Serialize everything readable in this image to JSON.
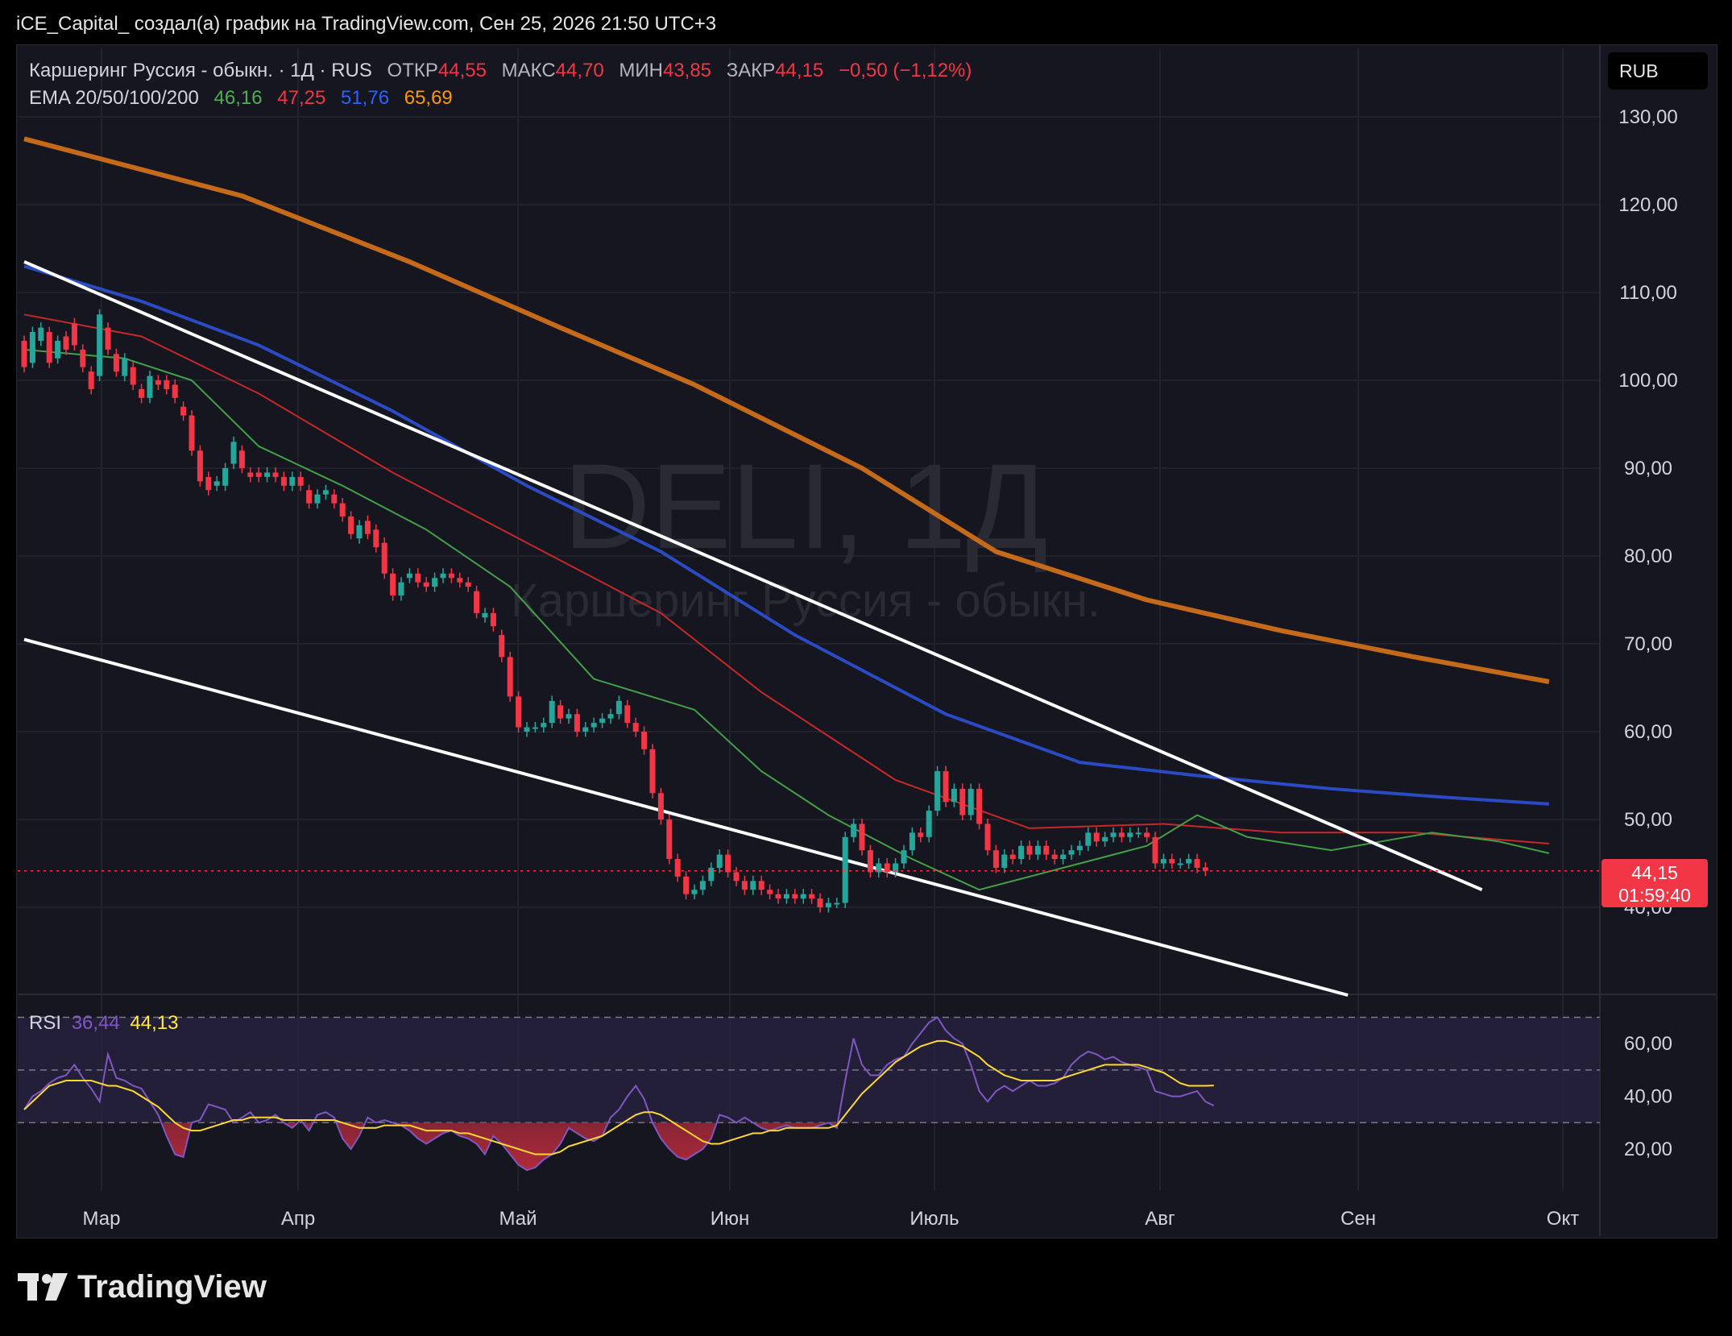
{
  "header": "iCE_Capital_ создал(а) график на TradingView.com, Сен 25, 2026 21:50 UTC+3",
  "legend": {
    "symbol": "Каршеринг Руссия - обыкн. · 1Д · RUS",
    "open_label": "ОТКР",
    "open": "44,55",
    "high_label": "МАКС",
    "high": "44,70",
    "low_label": "МИН",
    "low": "43,85",
    "close_label": "ЗАКР",
    "close": "44,15",
    "change": "−0,50 (−1,12%)",
    "ema_label": "EMA 20/50/100/200",
    "ema20": "46,16",
    "ema50": "47,25",
    "ema100": "51,76",
    "ema200": "65,69"
  },
  "currency_button": "RUB",
  "watermark": {
    "ticker": "DELI, 1Д",
    "name": "Каршеринг Руссия - обыкн."
  },
  "price_tag": {
    "price": "44,15",
    "countdown": "01:59:40"
  },
  "rsi_legend": {
    "label": "RSI",
    "value": "36,44",
    "ma": "44,13"
  },
  "brand": "TradingView",
  "colors": {
    "up": "#26a69a",
    "down": "#f23645",
    "ema20": "#43a047",
    "ema50": "#c62828",
    "ema100": "#2b4bc4",
    "ema200": "#c46a1a",
    "rsi": "#7e57c2",
    "rsi_ma": "#fdd835",
    "trendline": "#ffffff"
  },
  "chart_data": {
    "type": "candlestick",
    "x_ticks": [
      "Мар",
      "Апр",
      "Май",
      "Июн",
      "Июль",
      "Авг",
      "Сен",
      "Окт"
    ],
    "y_ticks": [
      "130,00",
      "120,00",
      "110,00",
      "100,00",
      "90,00",
      "80,00",
      "70,00",
      "60,00",
      "50,00",
      "40,00"
    ],
    "ylim": [
      30,
      134
    ],
    "rsi_ticks": [
      "60,00",
      "40,00",
      "20,00"
    ],
    "rsi_bands": [
      30,
      50,
      70
    ],
    "candles": [
      [
        104.5,
        101.5
      ],
      [
        102.0,
        105.5
      ],
      [
        104.5,
        106.0
      ],
      [
        105.5,
        102.0
      ],
      [
        102.5,
        104.5
      ],
      [
        105.0,
        103.5
      ],
      [
        106.5,
        104.0
      ],
      [
        103.5,
        101.5
      ],
      [
        101.0,
        99.0
      ],
      [
        100.5,
        107.5
      ],
      [
        106.0,
        103.5
      ],
      [
        103.0,
        101.0
      ],
      [
        100.5,
        102.5
      ],
      [
        101.5,
        99.5
      ],
      [
        99.0,
        98.0
      ],
      [
        98.0,
        100.5
      ],
      [
        100.0,
        99.5
      ],
      [
        100.0,
        99.0
      ],
      [
        99.5,
        98.0
      ],
      [
        97.0,
        96.0
      ],
      [
        96.0,
        92.0
      ],
      [
        92.0,
        88.5
      ],
      [
        89.0,
        87.5
      ],
      [
        88.0,
        88.5
      ],
      [
        88.0,
        90.0
      ],
      [
        90.5,
        93.0
      ],
      [
        92.0,
        90.0
      ],
      [
        89.5,
        89.0
      ],
      [
        89.5,
        89.0
      ],
      [
        89.0,
        89.5
      ],
      [
        89.5,
        89.0
      ],
      [
        89.0,
        88.0
      ],
      [
        88.0,
        89.0
      ],
      [
        89.0,
        88.0
      ],
      [
        87.5,
        86.0
      ],
      [
        86.0,
        87.0
      ],
      [
        87.0,
        87.5
      ],
      [
        87.0,
        86.0
      ],
      [
        86.0,
        84.5
      ],
      [
        84.5,
        82.5
      ],
      [
        82.0,
        83.5
      ],
      [
        84.0,
        82.5
      ],
      [
        83.0,
        81.0
      ],
      [
        81.5,
        78.0
      ],
      [
        78.0,
        75.5
      ],
      [
        75.5,
        77.0
      ],
      [
        77.5,
        78.0
      ],
      [
        78.0,
        77.0
      ],
      [
        77.0,
        76.5
      ],
      [
        76.5,
        77.5
      ],
      [
        77.5,
        78.0
      ],
      [
        78.0,
        77.5
      ],
      [
        77.5,
        77.0
      ],
      [
        77.0,
        76.5
      ],
      [
        76.0,
        73.5
      ],
      [
        73.0,
        73.5
      ],
      [
        73.5,
        72.0
      ],
      [
        71.0,
        68.5
      ],
      [
        68.5,
        64.0
      ],
      [
        64.0,
        60.5
      ],
      [
        60.0,
        60.5
      ],
      [
        60.5,
        60.5
      ],
      [
        60.5,
        61.0
      ],
      [
        61.0,
        63.5
      ],
      [
        63.0,
        61.5
      ],
      [
        61.5,
        62.0
      ],
      [
        62.0,
        60.0
      ],
      [
        60.0,
        60.5
      ],
      [
        60.5,
        61.0
      ],
      [
        61.0,
        61.5
      ],
      [
        61.5,
        62.0
      ],
      [
        62.0,
        63.5
      ],
      [
        63.0,
        61.0
      ],
      [
        61.0,
        60.0
      ],
      [
        60.0,
        58.0
      ],
      [
        58.0,
        53.0
      ],
      [
        53.0,
        50.0
      ],
      [
        50.0,
        45.5
      ],
      [
        45.5,
        43.5
      ],
      [
        43.5,
        41.5
      ],
      [
        41.5,
        42.0
      ],
      [
        42.0,
        43.0
      ],
      [
        43.0,
        44.5
      ],
      [
        44.5,
        46.0
      ],
      [
        46.0,
        44.0
      ],
      [
        44.0,
        43.0
      ],
      [
        43.0,
        42.0
      ],
      [
        42.0,
        43.0
      ],
      [
        43.0,
        42.0
      ],
      [
        42.0,
        41.5
      ],
      [
        41.5,
        41.0
      ],
      [
        41.0,
        41.5
      ],
      [
        41.5,
        41.0
      ],
      [
        41.0,
        41.5
      ],
      [
        41.5,
        41.0
      ],
      [
        41.0,
        40.0
      ],
      [
        40.0,
        40.5
      ],
      [
        40.5,
        40.5
      ],
      [
        40.5,
        48.0
      ],
      [
        48.0,
        49.5
      ],
      [
        49.5,
        46.5
      ],
      [
        46.5,
        44.0
      ],
      [
        44.0,
        45.0
      ],
      [
        45.0,
        44.0
      ],
      [
        44.0,
        45.0
      ],
      [
        45.0,
        46.5
      ],
      [
        46.5,
        48.5
      ],
      [
        48.5,
        48.0
      ],
      [
        48.0,
        51.0
      ],
      [
        51.0,
        55.5
      ],
      [
        55.5,
        52.0
      ],
      [
        52.0,
        53.5
      ],
      [
        53.5,
        50.5
      ],
      [
        50.5,
        53.5
      ],
      [
        53.5,
        49.5
      ],
      [
        49.5,
        46.5
      ],
      [
        46.5,
        44.5
      ],
      [
        44.5,
        46.0
      ],
      [
        46.0,
        45.5
      ],
      [
        45.5,
        47.0
      ],
      [
        47.0,
        46.0
      ],
      [
        46.0,
        47.0
      ],
      [
        47.0,
        46.0
      ],
      [
        46.0,
        45.5
      ],
      [
        45.5,
        46.0
      ],
      [
        46.0,
        46.5
      ],
      [
        46.5,
        47.0
      ],
      [
        47.0,
        48.5
      ],
      [
        48.5,
        47.5
      ],
      [
        47.5,
        48.0
      ],
      [
        48.0,
        48.5
      ],
      [
        48.5,
        48.0
      ],
      [
        48.0,
        48.5
      ],
      [
        48.5,
        48.5
      ],
      [
        48.5,
        48.0
      ],
      [
        48.0,
        45.0
      ],
      [
        45.0,
        45.5
      ],
      [
        45.5,
        45.0
      ],
      [
        45.0,
        45.0
      ],
      [
        45.0,
        45.5
      ],
      [
        45.5,
        44.5
      ],
      [
        44.55,
        44.15
      ]
    ],
    "ema20": [
      [
        0,
        103.5
      ],
      [
        12,
        102.5
      ],
      [
        20,
        100.0
      ],
      [
        28,
        92.5
      ],
      [
        38,
        88.0
      ],
      [
        48,
        83.0
      ],
      [
        58,
        76.5
      ],
      [
        68,
        66.0
      ],
      [
        80,
        62.5
      ],
      [
        88,
        55.5
      ],
      [
        96,
        50.5
      ],
      [
        106,
        45.5
      ],
      [
        114,
        42.0
      ],
      [
        124,
        44.5
      ],
      [
        134,
        47.0
      ],
      [
        140,
        50.5
      ],
      [
        146,
        48.0
      ],
      [
        156,
        46.5
      ],
      [
        168,
        48.5
      ],
      [
        176,
        47.5
      ],
      [
        182,
        46.16
      ]
    ],
    "ema50": [
      [
        0,
        107.5
      ],
      [
        14,
        105.0
      ],
      [
        28,
        98.5
      ],
      [
        44,
        89.5
      ],
      [
        60,
        81.5
      ],
      [
        76,
        73.5
      ],
      [
        88,
        64.5
      ],
      [
        104,
        54.5
      ],
      [
        120,
        49.0
      ],
      [
        136,
        49.5
      ],
      [
        150,
        48.5
      ],
      [
        166,
        48.5
      ],
      [
        182,
        47.25
      ]
    ],
    "ema100": [
      [
        0,
        113.0
      ],
      [
        14,
        109.0
      ],
      [
        28,
        104.0
      ],
      [
        44,
        96.5
      ],
      [
        60,
        88.0
      ],
      [
        76,
        80.5
      ],
      [
        92,
        71.0
      ],
      [
        110,
        62.0
      ],
      [
        126,
        56.5
      ],
      [
        140,
        55.0
      ],
      [
        156,
        53.5
      ],
      [
        170,
        52.5
      ],
      [
        182,
        51.76
      ]
    ],
    "ema200": [
      [
        0,
        127.5
      ],
      [
        26,
        121.0
      ],
      [
        46,
        113.5
      ],
      [
        64,
        106.0
      ],
      [
        80,
        99.5
      ],
      [
        100,
        90.0
      ],
      [
        116,
        80.5
      ],
      [
        134,
        75.0
      ],
      [
        150,
        71.5
      ],
      [
        166,
        68.5
      ],
      [
        182,
        65.69
      ]
    ],
    "trendlines": [
      [
        [
          0,
          113.5
        ],
        [
          174,
          42.0
        ]
      ],
      [
        [
          0,
          70.5
        ],
        [
          158,
          30.0
        ]
      ]
    ],
    "rsi": [
      35,
      40,
      42,
      45,
      47,
      48,
      52,
      47,
      43,
      38,
      56,
      47,
      46,
      44,
      43,
      38,
      33,
      25,
      18,
      17,
      30,
      31,
      37,
      36,
      35,
      30,
      32,
      34,
      30,
      31,
      33,
      30,
      28,
      31,
      27,
      33,
      34,
      32,
      24,
      20,
      25,
      32,
      30,
      31,
      30,
      29,
      27,
      24,
      22,
      24,
      26,
      27,
      25,
      24,
      22,
      18,
      25,
      22,
      18,
      14,
      12,
      13,
      16,
      18,
      22,
      28,
      26,
      24,
      23,
      25,
      32,
      35,
      40,
      44,
      39,
      30,
      24,
      20,
      17,
      16,
      18,
      20,
      24,
      33,
      32,
      30,
      32,
      30,
      28,
      27,
      28,
      29,
      28,
      28,
      28,
      29,
      30,
      28,
      46,
      62,
      52,
      48,
      48,
      52,
      54,
      55,
      60,
      64,
      68,
      70,
      65,
      62,
      60,
      52,
      42,
      38,
      42,
      44,
      42,
      44,
      46,
      44,
      44,
      45,
      47,
      52,
      55,
      57,
      56,
      54,
      55,
      53,
      52,
      51,
      50,
      42,
      41,
      40,
      40,
      41,
      42,
      38,
      36.44
    ],
    "rsi_ma": [
      35,
      38,
      41,
      44,
      45,
      46,
      46,
      46,
      46,
      45,
      44,
      44,
      43,
      42,
      40,
      38,
      36,
      33,
      30,
      28,
      27,
      27,
      28,
      29,
      30,
      31,
      31,
      32,
      32,
      32,
      32,
      31,
      31,
      31,
      31,
      31,
      31,
      31,
      30,
      29,
      28,
      28,
      28,
      29,
      29,
      29,
      29,
      28,
      27,
      27,
      27,
      27,
      26,
      26,
      25,
      24,
      23,
      22,
      21,
      20,
      19,
      18,
      18,
      18,
      19,
      21,
      22,
      23,
      24,
      25,
      27,
      29,
      31,
      33,
      34,
      34,
      33,
      31,
      29,
      27,
      25,
      23,
      22,
      22,
      23,
      24,
      25,
      26,
      26,
      27,
      27,
      28,
      28,
      28,
      28,
      28,
      28,
      29,
      33,
      37,
      41,
      44,
      47,
      50,
      53,
      55,
      57,
      59,
      60,
      61,
      61,
      60,
      59,
      57,
      55,
      52,
      50,
      48,
      47,
      46,
      46,
      46,
      46,
      46,
      47,
      48,
      49,
      50,
      51,
      52,
      52,
      52,
      52,
      52,
      51,
      50,
      49,
      47,
      45,
      44,
      44,
      44,
      44.13
    ]
  }
}
